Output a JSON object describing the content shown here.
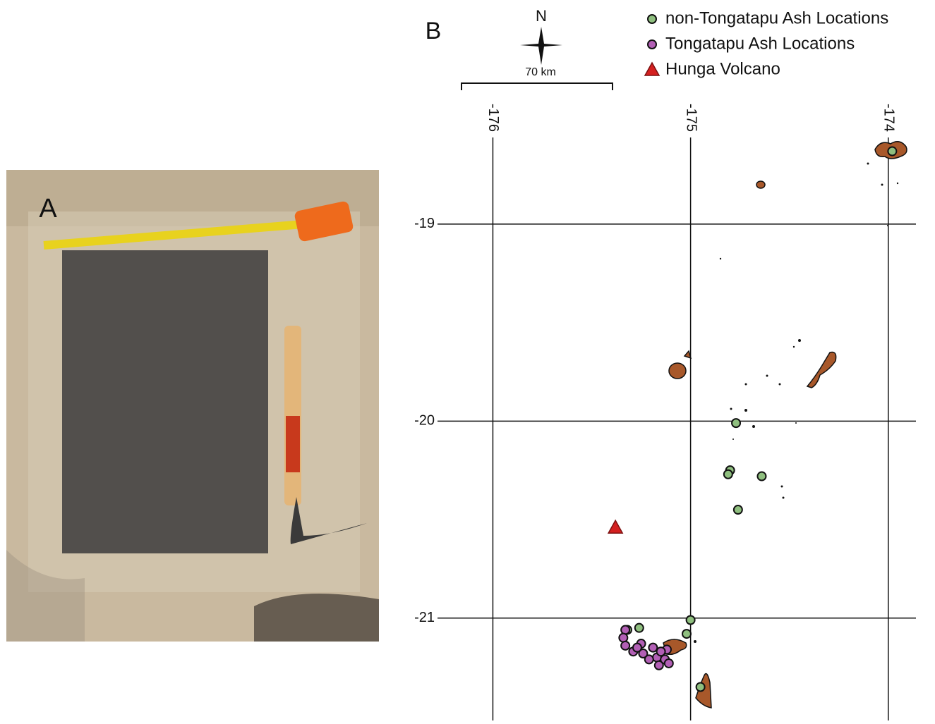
{
  "photo": {
    "label": "A"
  },
  "chart_data": {
    "type": "scatter",
    "panel_label": "B",
    "north_label": "N",
    "scale_bar_label": "70 km",
    "xlim": [
      -176.28,
      -173.86
    ],
    "ylim": [
      -21.52,
      -18.56
    ],
    "xticks": [
      -176,
      -175,
      -174
    ],
    "yticks": [
      -19,
      -20,
      -21
    ],
    "grid": true,
    "series": [
      {
        "name": "non-Tongatapu Ash Locations",
        "color": "#8fbf7f",
        "marker": "circle",
        "x": [
          -173.98,
          -174.77,
          -174.8,
          -174.81,
          -174.64,
          -174.76,
          -175.0,
          -175.02,
          -175.26,
          -175.32,
          -174.95
        ],
        "values": [
          -18.63,
          -20.01,
          -20.25,
          -20.27,
          -20.28,
          -20.45,
          -21.01,
          -21.08,
          -21.05,
          -21.06,
          -21.35
        ]
      },
      {
        "name": "Tongatapu Ash Locations",
        "color": "#b25fb5",
        "marker": "circle",
        "x": [
          -175.33,
          -175.34,
          -175.33,
          -175.29,
          -175.25,
          -175.24,
          -175.19,
          -175.17,
          -175.16,
          -175.13,
          -175.12,
          -175.11,
          -175.15,
          -175.21,
          -175.27
        ],
        "values": [
          -21.06,
          -21.1,
          -21.14,
          -21.17,
          -21.13,
          -21.18,
          -21.15,
          -21.2,
          -21.24,
          -21.21,
          -21.16,
          -21.23,
          -21.17,
          -21.21,
          -21.15
        ]
      },
      {
        "name": "Hunga Volcano",
        "color": "#d42020",
        "marker": "triangle",
        "x": [
          -175.38
        ],
        "values": [
          -20.54
        ]
      }
    ]
  }
}
